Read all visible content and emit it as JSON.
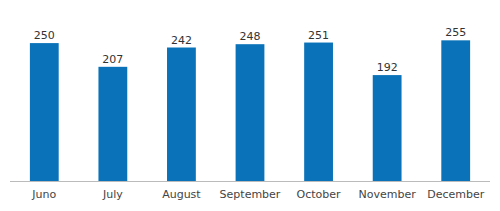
{
  "chart_data": {
    "type": "bar",
    "categories": [
      "Juno",
      "July",
      "August",
      "September",
      "October",
      "November",
      "December"
    ],
    "values": [
      250,
      207,
      242,
      248,
      251,
      192,
      255
    ],
    "color": "#0972B8",
    "ylim": [
      0,
      310
    ],
    "data_labels": true,
    "tick_labels": "x",
    "grid": false
  }
}
